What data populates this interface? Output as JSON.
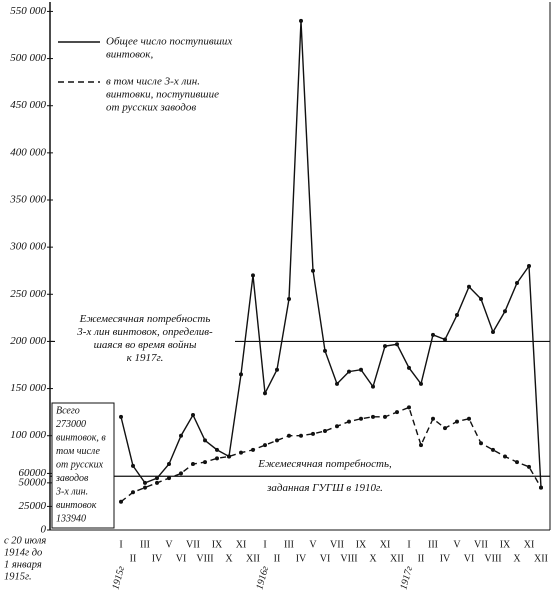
{
  "chart_data": {
    "type": "line",
    "categories": [
      "I",
      "II",
      "III",
      "IV",
      "V",
      "VI",
      "VII",
      "VIII",
      "IX",
      "X",
      "XI",
      "XII",
      "I",
      "II",
      "III",
      "IV",
      "V",
      "VI",
      "VII",
      "VIII",
      "IX",
      "X",
      "XI",
      "XII",
      "I",
      "II",
      "III",
      "IV",
      "V",
      "VI",
      "VII",
      "VIII",
      "IX",
      "X",
      "XI",
      "XII"
    ],
    "years": [
      "1915г",
      "1916г",
      "1917г"
    ],
    "period_label": [
      "с 20 июля",
      "1914г до",
      "1 января",
      "1915г."
    ],
    "series": [
      {
        "name": [
          "Общее число поступивших",
          "винтовок,"
        ],
        "color": "#111111",
        "dashed": false,
        "markers": true,
        "values": [
          120000,
          68000,
          50000,
          55000,
          70000,
          100000,
          122000,
          95000,
          85000,
          78000,
          165000,
          270000,
          145000,
          170000,
          245000,
          540000,
          275000,
          190000,
          155000,
          168000,
          170000,
          152000,
          195000,
          197000,
          172000,
          155000,
          207000,
          202000,
          228000,
          258000,
          245000,
          210000,
          232000,
          262000,
          280000,
          45000
        ]
      },
      {
        "name": [
          "в том числе 3-х лин.",
          "винтовки, поступившие",
          "от русских заводов"
        ],
        "color": "#111111",
        "dashed": true,
        "markers": true,
        "values": [
          30000,
          40000,
          45000,
          50000,
          55000,
          60000,
          70000,
          72000,
          76000,
          78000,
          82000,
          85000,
          90000,
          95000,
          100000,
          100000,
          102000,
          105000,
          110000,
          115000,
          118000,
          120000,
          120000,
          125000,
          130000,
          90000,
          118000,
          108000,
          115000,
          118000,
          92000,
          85000,
          78000,
          72000,
          67000,
          45000
        ]
      }
    ],
    "reference_lines": [
      {
        "value": 200000,
        "label": [
          "Ежемесячная потребность",
          "3-х лин винтовок, определив-",
          "шаяся во время войны",
          "к 1917г."
        ]
      },
      {
        "value": 57000,
        "label": [
          "Ежемесячная потребность,",
          "заданная ГУГШ в 1910г."
        ]
      }
    ],
    "summary_box": [
      "Всего",
      "273000",
      "винтовок, в",
      "том числе",
      "от русских",
      "заводов",
      "3-х лин.",
      "винтовок",
      "133940"
    ],
    "ylim": [
      0,
      560000
    ],
    "yticks": [
      {
        "value": 550000,
        "label": "550 000"
      },
      {
        "value": 500000,
        "label": "500 000"
      },
      {
        "value": 450000,
        "label": "450 000"
      },
      {
        "value": 400000,
        "label": "400 000"
      },
      {
        "value": 350000,
        "label": "350 000"
      },
      {
        "value": 300000,
        "label": "300 000"
      },
      {
        "value": 250000,
        "label": "250 000"
      },
      {
        "value": 200000,
        "label": "200 000"
      },
      {
        "value": 150000,
        "label": "150 000"
      },
      {
        "value": 100000,
        "label": "100 000"
      },
      60000,
      50000,
      25000,
      0
    ],
    "grid": false
  }
}
